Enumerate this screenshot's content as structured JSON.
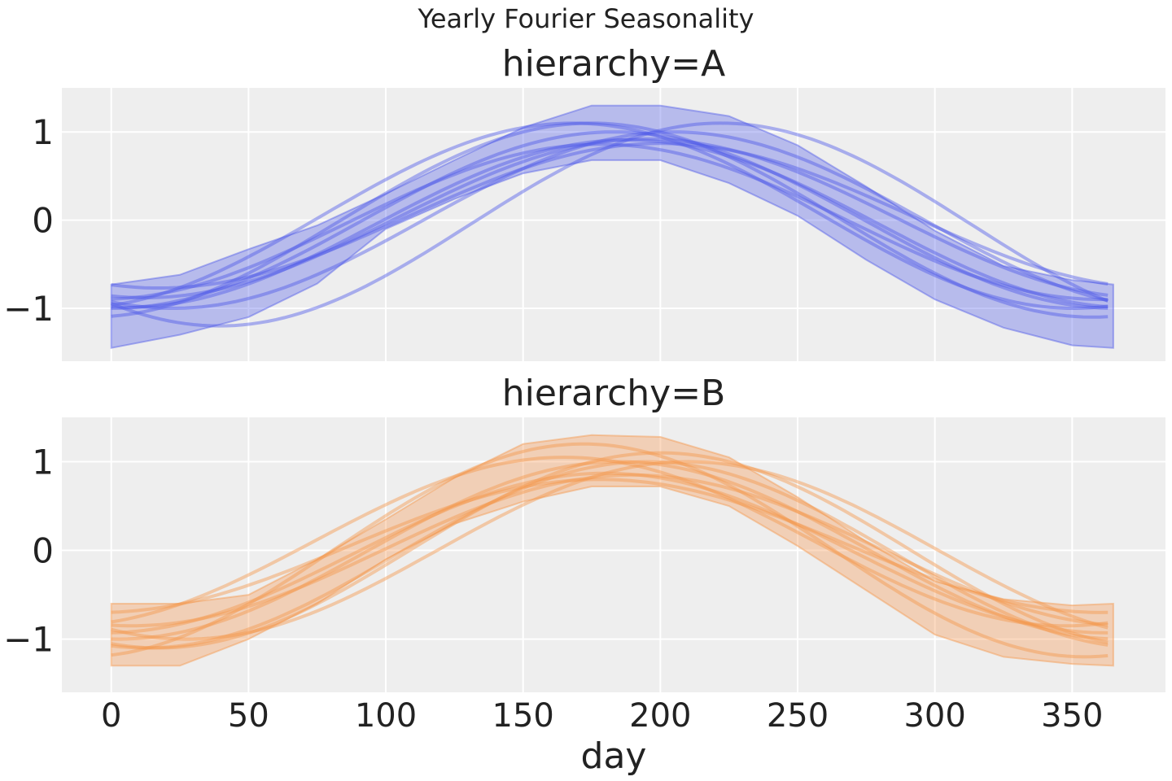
{
  "figure": {
    "suptitle": "Yearly Fourier Seasonality",
    "xlabel": "day",
    "background": "#ffffff",
    "panel_background": "#eeeeee",
    "grid_color": "#ffffff"
  },
  "chart_data": [
    {
      "type": "line",
      "title": "hierarchy=A",
      "xlabel": "",
      "ylabel": "",
      "xlim": [
        -18,
        384
      ],
      "ylim": [
        -1.6,
        1.5
      ],
      "xticks": [
        0,
        50,
        100,
        150,
        200,
        250,
        300,
        350
      ],
      "xtick_labels": [
        "0",
        "50",
        "100",
        "150",
        "200",
        "250",
        "300",
        "350"
      ],
      "yticks": [
        -1,
        0,
        1
      ],
      "ytick_labels": [
        "−1",
        "0",
        "1"
      ],
      "grid": true,
      "color": "#4f5be8",
      "band": {
        "x": [
          0,
          25,
          50,
          75,
          100,
          125,
          150,
          175,
          200,
          225,
          250,
          275,
          300,
          325,
          350,
          365
        ],
        "upper": [
          -0.73,
          -0.62,
          -0.33,
          -0.06,
          0.3,
          0.68,
          1.05,
          1.3,
          1.3,
          1.18,
          0.85,
          0.38,
          -0.12,
          -0.52,
          -0.68,
          -0.73
        ],
        "lower": [
          -1.45,
          -1.3,
          -1.1,
          -0.72,
          -0.1,
          0.24,
          0.53,
          0.68,
          0.68,
          0.42,
          0.05,
          -0.45,
          -0.9,
          -1.22,
          -1.42,
          -1.45
        ]
      },
      "series": [
        {
          "amp": 1.0,
          "peak": 183,
          "offset": 0.0
        },
        {
          "amp": 0.9,
          "peak": 195,
          "offset": 0.02
        },
        {
          "amp": 1.1,
          "peak": 175,
          "offset": 0.0
        },
        {
          "amp": 1.15,
          "peak": 222,
          "offset": -0.05
        },
        {
          "amp": 0.82,
          "peak": 200,
          "offset": 0.05
        },
        {
          "amp": 1.05,
          "peak": 168,
          "offset": 0.05
        },
        {
          "amp": 0.95,
          "peak": 188,
          "offset": -0.04
        },
        {
          "amp": 1.0,
          "peak": 205,
          "offset": 0.0
        },
        {
          "amp": 0.88,
          "peak": 178,
          "offset": -0.02
        }
      ]
    },
    {
      "type": "line",
      "title": "hierarchy=B",
      "xlabel": "day",
      "ylabel": "",
      "xlim": [
        -18,
        384
      ],
      "ylim": [
        -1.6,
        1.5
      ],
      "xticks": [
        0,
        50,
        100,
        150,
        200,
        250,
        300,
        350
      ],
      "xtick_labels": [
        "0",
        "50",
        "100",
        "150",
        "200",
        "250",
        "300",
        "350"
      ],
      "yticks": [
        -1,
        0,
        1
      ],
      "ytick_labels": [
        "−1",
        "0",
        "1"
      ],
      "grid": true,
      "color": "#f5964c",
      "band": {
        "x": [
          0,
          25,
          50,
          75,
          100,
          125,
          150,
          175,
          200,
          225,
          250,
          275,
          300,
          325,
          350,
          365
        ],
        "upper": [
          -0.6,
          -0.6,
          -0.5,
          -0.1,
          0.35,
          0.82,
          1.2,
          1.3,
          1.28,
          1.05,
          0.6,
          0.1,
          -0.35,
          -0.55,
          -0.62,
          -0.6
        ],
        "lower": [
          -1.3,
          -1.3,
          -1.0,
          -0.6,
          -0.1,
          0.3,
          0.55,
          0.72,
          0.72,
          0.5,
          0.05,
          -0.45,
          -0.95,
          -1.2,
          -1.28,
          -1.3
        ]
      },
      "series": [
        {
          "amp": 1.0,
          "peak": 185,
          "offset": 0.0
        },
        {
          "amp": 1.2,
          "peak": 172,
          "offset": 0.0
        },
        {
          "amp": 0.85,
          "peak": 190,
          "offset": 0.0
        },
        {
          "amp": 1.1,
          "peak": 200,
          "offset": 0.0
        },
        {
          "amp": 0.75,
          "peak": 178,
          "offset": 0.05
        },
        {
          "amp": 0.95,
          "peak": 165,
          "offset": 0.1
        },
        {
          "amp": 1.05,
          "peak": 195,
          "offset": -0.05
        },
        {
          "amp": 0.9,
          "peak": 180,
          "offset": -0.03
        },
        {
          "amp": 1.0,
          "peak": 210,
          "offset": 0.0
        }
      ]
    }
  ]
}
